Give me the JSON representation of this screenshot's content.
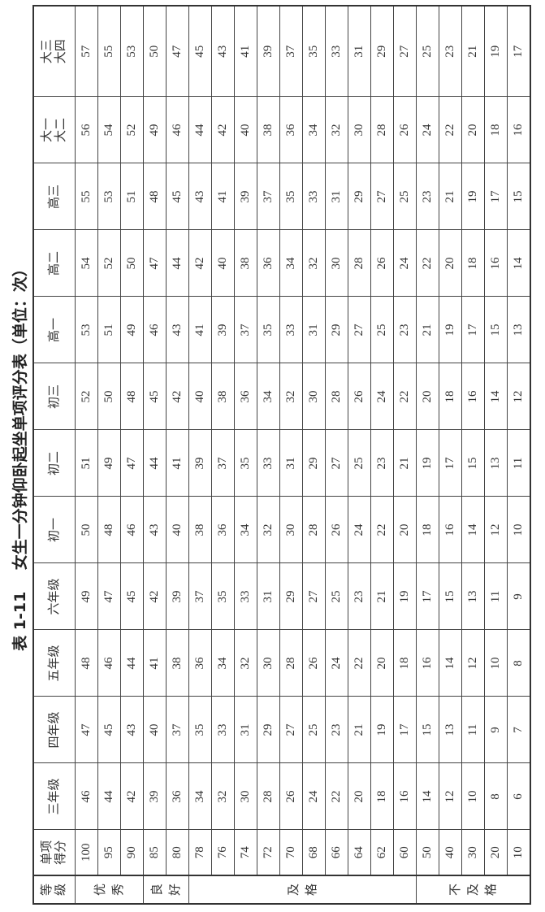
{
  "title": "表 1-11    女生一分钟仰卧起坐单项评分表（单位：次）",
  "headers": [
    "等级",
    "单项得分",
    "三年级",
    "四年级",
    "五年级",
    "六年级",
    "初一",
    "初二",
    "初三",
    "高一",
    "高二",
    "高三",
    "大一大二",
    "大三大四"
  ],
  "grades": [
    {
      "label": "优秀",
      "rows": 3
    },
    {
      "label": "良好",
      "rows": 2
    },
    {
      "label": "及格",
      "rows": 10
    },
    {
      "label": "不及格",
      "rows": 5
    }
  ],
  "rows": [
    {
      "score": "100",
      "values": [
        "46",
        "47",
        "48",
        "49",
        "50",
        "51",
        "52",
        "53",
        "54",
        "55",
        "56",
        "57"
      ]
    },
    {
      "score": "95",
      "values": [
        "44",
        "45",
        "46",
        "47",
        "48",
        "49",
        "50",
        "51",
        "52",
        "53",
        "54",
        "55"
      ]
    },
    {
      "score": "90",
      "values": [
        "42",
        "43",
        "44",
        "45",
        "46",
        "47",
        "48",
        "49",
        "50",
        "51",
        "52",
        "53"
      ]
    },
    {
      "score": "85",
      "values": [
        "39",
        "40",
        "41",
        "42",
        "43",
        "44",
        "45",
        "46",
        "47",
        "48",
        "49",
        "50"
      ]
    },
    {
      "score": "80",
      "values": [
        "36",
        "37",
        "38",
        "39",
        "40",
        "41",
        "42",
        "43",
        "44",
        "45",
        "46",
        "47"
      ]
    },
    {
      "score": "78",
      "values": [
        "34",
        "35",
        "36",
        "37",
        "38",
        "39",
        "40",
        "41",
        "42",
        "43",
        "44",
        "45"
      ]
    },
    {
      "score": "76",
      "values": [
        "32",
        "33",
        "34",
        "35",
        "36",
        "37",
        "38",
        "39",
        "40",
        "41",
        "42",
        "43"
      ]
    },
    {
      "score": "74",
      "values": [
        "30",
        "31",
        "32",
        "33",
        "34",
        "35",
        "36",
        "37",
        "38",
        "39",
        "40",
        "41"
      ]
    },
    {
      "score": "72",
      "values": [
        "28",
        "29",
        "30",
        "31",
        "32",
        "33",
        "34",
        "35",
        "36",
        "37",
        "38",
        "39"
      ]
    },
    {
      "score": "70",
      "values": [
        "26",
        "27",
        "28",
        "29",
        "30",
        "31",
        "32",
        "33",
        "34",
        "35",
        "36",
        "37"
      ]
    },
    {
      "score": "68",
      "values": [
        "24",
        "25",
        "26",
        "27",
        "28",
        "29",
        "30",
        "31",
        "32",
        "33",
        "34",
        "35"
      ]
    },
    {
      "score": "66",
      "values": [
        "22",
        "23",
        "24",
        "25",
        "26",
        "27",
        "28",
        "29",
        "30",
        "31",
        "32",
        "33"
      ]
    },
    {
      "score": "64",
      "values": [
        "20",
        "21",
        "22",
        "23",
        "24",
        "25",
        "26",
        "27",
        "28",
        "29",
        "30",
        "31"
      ]
    },
    {
      "score": "62",
      "values": [
        "18",
        "19",
        "20",
        "21",
        "22",
        "23",
        "24",
        "25",
        "26",
        "27",
        "28",
        "29"
      ]
    },
    {
      "score": "60",
      "values": [
        "16",
        "17",
        "18",
        "19",
        "20",
        "21",
        "22",
        "23",
        "24",
        "25",
        "26",
        "27"
      ]
    },
    {
      "score": "50",
      "values": [
        "14",
        "15",
        "16",
        "17",
        "18",
        "19",
        "20",
        "21",
        "22",
        "23",
        "24",
        "25"
      ]
    },
    {
      "score": "40",
      "values": [
        "12",
        "13",
        "14",
        "15",
        "16",
        "17",
        "18",
        "19",
        "20",
        "21",
        "22",
        "23"
      ]
    },
    {
      "score": "30",
      "values": [
        "10",
        "11",
        "12",
        "13",
        "14",
        "15",
        "16",
        "17",
        "18",
        "19",
        "20",
        "21"
      ]
    },
    {
      "score": "20",
      "values": [
        "8",
        "9",
        "10",
        "11",
        "12",
        "13",
        "14",
        "15",
        "16",
        "17",
        "18",
        "19"
      ]
    },
    {
      "score": "10",
      "values": [
        "6",
        "7",
        "8",
        "9",
        "10",
        "11",
        "12",
        "13",
        "14",
        "15",
        "16",
        "17"
      ]
    }
  ]
}
